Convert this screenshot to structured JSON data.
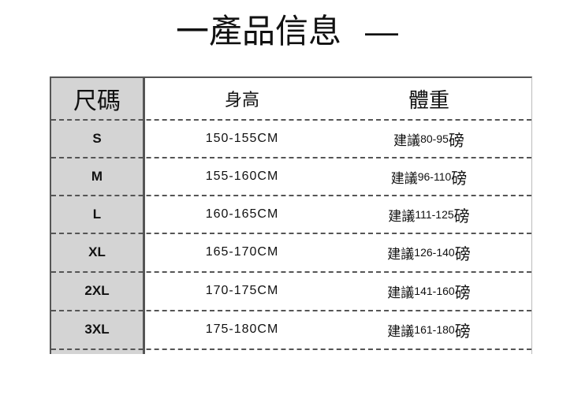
{
  "title": {
    "text": "一產品信息",
    "dash": "—"
  },
  "table": {
    "headers": {
      "size": "尺碼",
      "height": "身高",
      "weight": "體重"
    },
    "rows": [
      {
        "size": "S",
        "height": "150-155CM",
        "weight_prefix": "建議",
        "weight_range": "80-95",
        "weight_unit": "磅"
      },
      {
        "size": "M",
        "height": "155-160CM",
        "weight_prefix": "建議",
        "weight_range": "96-110",
        "weight_unit": "磅"
      },
      {
        "size": "L",
        "height": "160-165CM",
        "weight_prefix": "建議",
        "weight_range": "111-125",
        "weight_unit": "磅"
      },
      {
        "size": "XL",
        "height": "165-170CM",
        "weight_prefix": "建議",
        "weight_range": "126-140",
        "weight_unit": "磅"
      },
      {
        "size": "2XL",
        "height": "170-175CM",
        "weight_prefix": "建議",
        "weight_range": "141-160",
        "weight_unit": "磅"
      },
      {
        "size": "3XL",
        "height": "175-180CM",
        "weight_prefix": "建議",
        "weight_range": "161-180",
        "weight_unit": "磅"
      }
    ]
  }
}
